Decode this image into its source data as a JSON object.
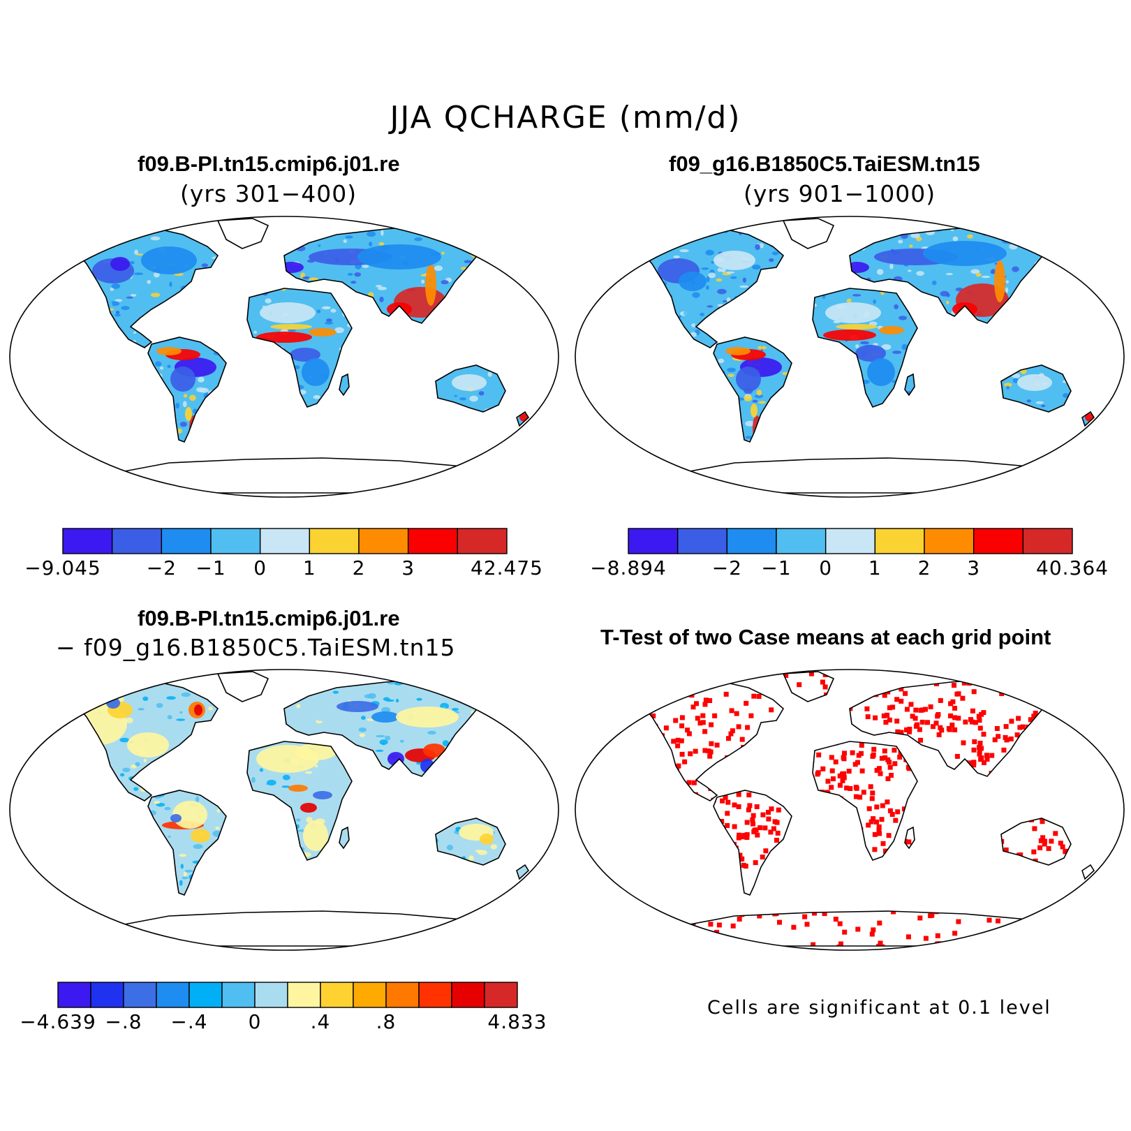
{
  "title": "JJA QCHARGE (mm/d)",
  "panels": {
    "p1": {
      "title": "f09.B-PI.tn15.cmip6.j01.re",
      "subtitle": "(yrs 301-400)"
    },
    "p2": {
      "title": "f09_g16.B1850C5.TaiESM.tn15",
      "subtitle": "(yrs 901-1000)"
    },
    "p3": {
      "title": "f09.B-PI.tn15.cmip6.j01.re",
      "subtitle": "- f09_g16.B1850C5.TaiESM.tn15"
    },
    "p4": {
      "title": "T-Test of two Case means at each grid point",
      "note": "Cells are significant at 0.1 level"
    }
  },
  "colorbars": {
    "cb1": {
      "colors": [
        "#3c19f0",
        "#3b5ee6",
        "#1e8cf0",
        "#50bef0",
        "#c8e6f5",
        "#fad232",
        "#ff8c00",
        "#fa0000",
        "#d72828"
      ],
      "labels": [
        "-9.045",
        "-2",
        "-1",
        "0",
        "1",
        "2",
        "3",
        "42.475"
      ]
    },
    "cb2": {
      "colors": [
        "#3c19f0",
        "#3b5ee6",
        "#1e8cf0",
        "#50bef0",
        "#c8e6f5",
        "#fad232",
        "#ff8c00",
        "#fa0000",
        "#d72828"
      ],
      "labels": [
        "-8.894",
        "-2",
        "-1",
        "0",
        "1",
        "2",
        "3",
        "40.364"
      ]
    },
    "cb3": {
      "colors": [
        "#3c19f0",
        "#1e32f0",
        "#3c6ee6",
        "#1e8cf0",
        "#00aff5",
        "#50bef0",
        "#aadcf0",
        "#fff5a0",
        "#ffd232",
        "#ffaa00",
        "#ff7800",
        "#ff3200",
        "#e60000",
        "#d72828"
      ],
      "labels": [
        "-4.639",
        "-.8",
        "-.4",
        "0",
        ".4",
        ".8",
        "4.833"
      ]
    }
  },
  "colors": {
    "significant": "#ff0000",
    "land_default": "#50bef0",
    "coastline": "#000000"
  }
}
